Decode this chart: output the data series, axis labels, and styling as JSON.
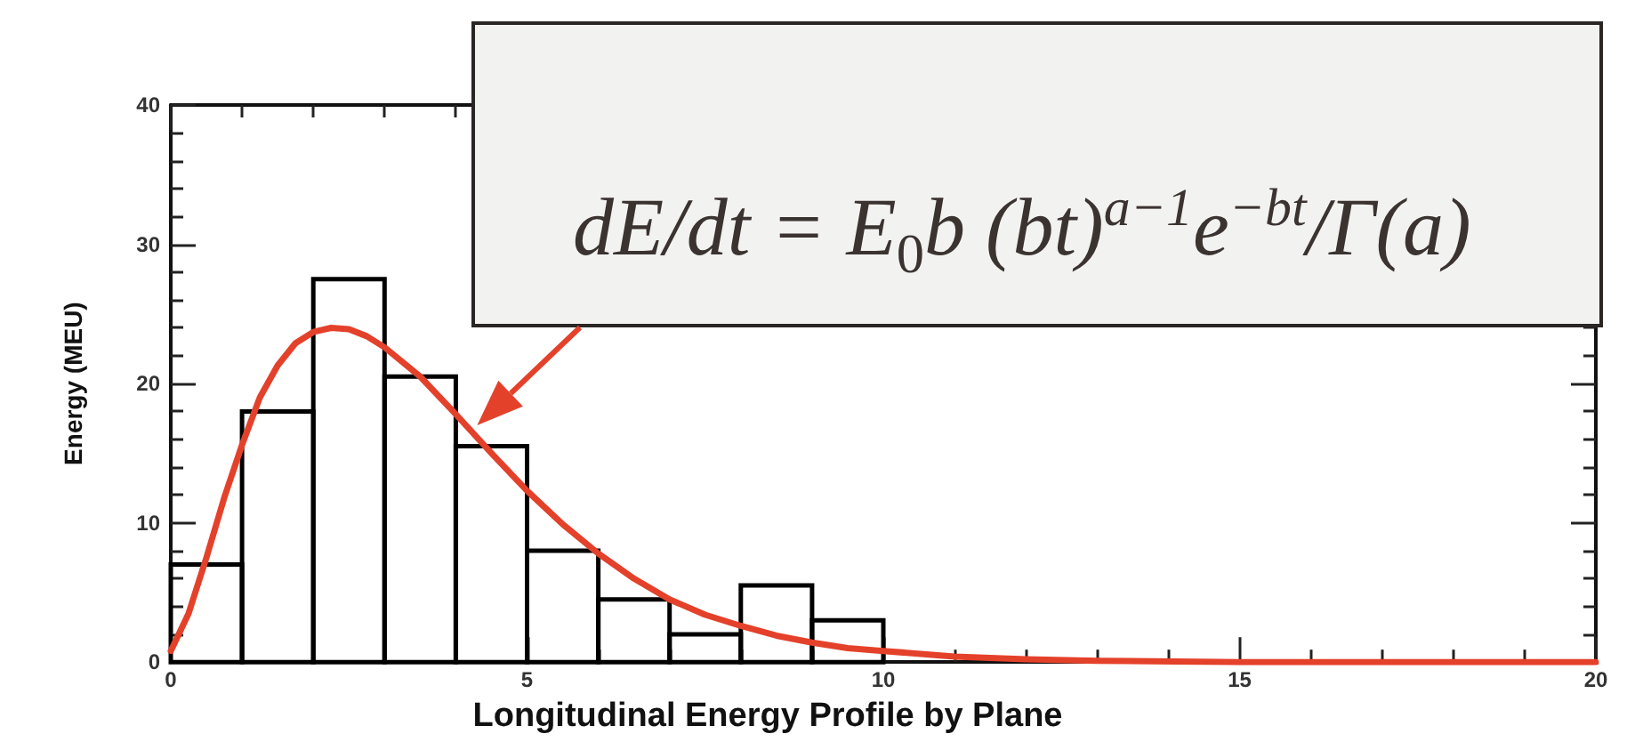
{
  "chart_data": {
    "type": "histogram",
    "xlabel": "Longitudinal Energy Profile by Plane",
    "ylabel": "Energy (MEU)",
    "xlim": [
      0,
      20
    ],
    "xticks": [
      0,
      {
        "value": 1,
        "label": null
      },
      {
        "value": 2,
        "label": null
      },
      {
        "value": 3,
        "label": null
      },
      {
        "value": 4,
        "label": null
      },
      5,
      {
        "value": 6,
        "label": null
      },
      {
        "value": 7,
        "label": null
      },
      {
        "value": 8,
        "label": null
      },
      {
        "value": 9,
        "label": null
      },
      10,
      {
        "value": 11,
        "label": null
      },
      {
        "value": 12,
        "label": null
      },
      {
        "value": 13,
        "label": null
      },
      {
        "value": 14,
        "label": null
      },
      15,
      {
        "value": 16,
        "label": null
      },
      {
        "value": 17,
        "label": null
      },
      {
        "value": 18,
        "label": null
      },
      {
        "value": 19,
        "label": null
      },
      20
    ],
    "ylim": [
      0,
      40
    ],
    "yticks": [
      0,
      {
        "value": 2,
        "label": null
      },
      {
        "value": 4,
        "label": null
      },
      {
        "value": 6,
        "label": null
      },
      {
        "value": 8,
        "label": null
      },
      10,
      {
        "value": 12,
        "label": null
      },
      {
        "value": 14,
        "label": null
      },
      {
        "value": 16,
        "label": null
      },
      {
        "value": 18,
        "label": null
      },
      20,
      {
        "value": 22,
        "label": null
      },
      {
        "value": 24,
        "label": null
      },
      {
        "value": 26,
        "label": null
      },
      {
        "value": 28,
        "label": null
      },
      30,
      {
        "value": 32,
        "label": null
      },
      {
        "value": 34,
        "label": null
      },
      {
        "value": 36,
        "label": null
      },
      {
        "value": 38,
        "label": null
      },
      40
    ],
    "series": [
      {
        "type": "histogram",
        "color": "#000000",
        "bins": [
          0,
          1,
          2,
          3,
          4,
          5,
          6,
          7,
          8,
          9,
          10
        ],
        "values": [
          7,
          18,
          27.5,
          20.5,
          15.5,
          8,
          4.5,
          2,
          5.5,
          3
        ]
      },
      {
        "type": "line",
        "color": "#e4412b",
        "x": [
          0,
          0.25,
          0.5,
          0.75,
          1,
          1.25,
          1.5,
          1.75,
          2,
          2.25,
          2.5,
          2.75,
          3,
          3.5,
          4,
          4.5,
          5,
          5.5,
          6,
          6.5,
          7,
          7.5,
          8,
          8.5,
          9,
          9.5,
          10,
          11,
          12,
          13,
          15,
          20
        ],
        "values": [
          0.8,
          3.5,
          7.5,
          11.8,
          15.6,
          19,
          21.3,
          22.9,
          23.7,
          24,
          23.9,
          23.4,
          22.6,
          20.5,
          17.8,
          15,
          12.3,
          9.9,
          7.8,
          6,
          4.5,
          3.4,
          2.6,
          1.9,
          1.4,
          1,
          0.8,
          0.4,
          0.2,
          0.1,
          0,
          0
        ]
      }
    ],
    "annotations": [
      {
        "text": "dE/dt = E$_{0}$b (bt)$^{a−1}$e$^{−bt}$/Γ(a)",
        "x": 4.3,
        "y": 17
      }
    ]
  }
}
